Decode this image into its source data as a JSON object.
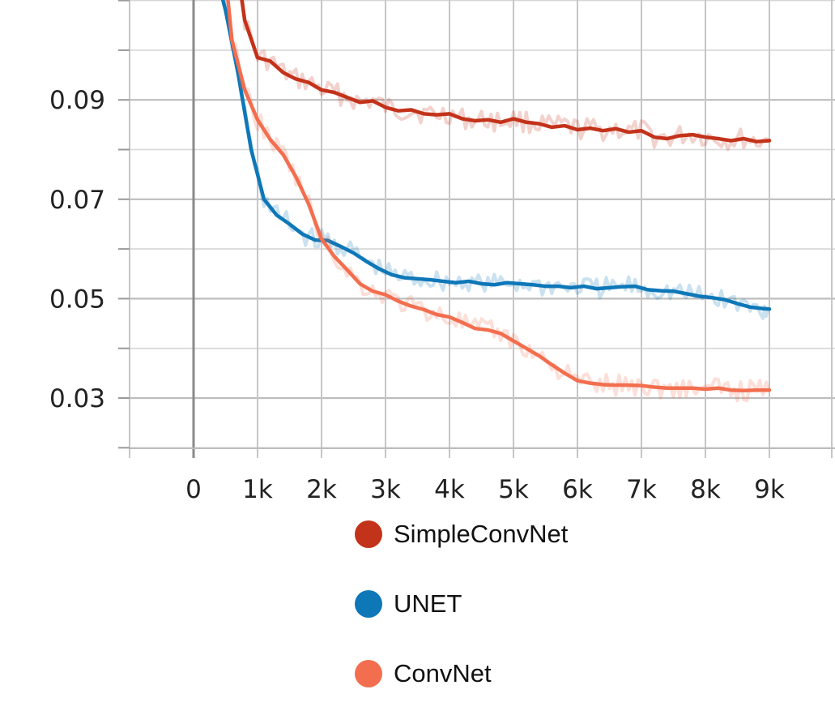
{
  "chart_data": {
    "type": "line",
    "title": "",
    "xlabel": "",
    "ylabel": "",
    "xlim": [
      -1000,
      9950
    ],
    "ylim": [
      0.02,
      0.11
    ],
    "grid": true,
    "legend_position": "bottom-center",
    "x_ticks": [
      0,
      1000,
      2000,
      3000,
      4000,
      5000,
      6000,
      7000,
      8000,
      9000
    ],
    "x_tick_labels": [
      "0",
      "1k",
      "2k",
      "3k",
      "4k",
      "5k",
      "6k",
      "7k",
      "8k",
      "9k"
    ],
    "y_ticks": [
      0.03,
      0.05,
      0.07,
      0.09
    ],
    "y_tick_labels": [
      "0.03",
      "0.05",
      "0.07",
      "0.09"
    ],
    "series": [
      {
        "name": "SimpleConvNet",
        "color": "#c3321a",
        "points": [
          [
            700,
            0.115
          ],
          [
            800,
            0.106
          ],
          [
            1000,
            0.0985
          ],
          [
            1200,
            0.0978
          ],
          [
            1400,
            0.0955
          ],
          [
            1600,
            0.0942
          ],
          [
            1800,
            0.0935
          ],
          [
            2000,
            0.092
          ],
          [
            2200,
            0.0915
          ],
          [
            2400,
            0.0905
          ],
          [
            2600,
            0.0895
          ],
          [
            2800,
            0.0898
          ],
          [
            3000,
            0.0885
          ],
          [
            3200,
            0.0878
          ],
          [
            3400,
            0.088
          ],
          [
            3600,
            0.0872
          ],
          [
            3800,
            0.087
          ],
          [
            4000,
            0.0872
          ],
          [
            4200,
            0.0862
          ],
          [
            4400,
            0.0858
          ],
          [
            4600,
            0.086
          ],
          [
            4800,
            0.0855
          ],
          [
            5000,
            0.0862
          ],
          [
            5200,
            0.0855
          ],
          [
            5400,
            0.0852
          ],
          [
            5600,
            0.0845
          ],
          [
            5800,
            0.0848
          ],
          [
            6000,
            0.084
          ],
          [
            6200,
            0.0843
          ],
          [
            6400,
            0.0838
          ],
          [
            6600,
            0.0842
          ],
          [
            6800,
            0.0835
          ],
          [
            7000,
            0.0838
          ],
          [
            7200,
            0.0825
          ],
          [
            7400,
            0.0822
          ],
          [
            7600,
            0.0828
          ],
          [
            7800,
            0.083
          ],
          [
            8000,
            0.0825
          ],
          [
            8200,
            0.0822
          ],
          [
            8400,
            0.0818
          ],
          [
            8600,
            0.0822
          ],
          [
            8800,
            0.0816
          ],
          [
            9000,
            0.0818
          ]
        ]
      },
      {
        "name": "UNET",
        "color": "#0e77b8",
        "points": [
          [
            360,
            0.115
          ],
          [
            500,
            0.108
          ],
          [
            700,
            0.095
          ],
          [
            900,
            0.08
          ],
          [
            1100,
            0.07
          ],
          [
            1300,
            0.0668
          ],
          [
            1500,
            0.065
          ],
          [
            1700,
            0.063
          ],
          [
            1900,
            0.0618
          ],
          [
            2100,
            0.0617
          ],
          [
            2300,
            0.0605
          ],
          [
            2500,
            0.0592
          ],
          [
            2700,
            0.0575
          ],
          [
            2900,
            0.056
          ],
          [
            3100,
            0.0548
          ],
          [
            3300,
            0.0542
          ],
          [
            3500,
            0.054
          ],
          [
            3700,
            0.0538
          ],
          [
            3900,
            0.0535
          ],
          [
            4100,
            0.0532
          ],
          [
            4300,
            0.0535
          ],
          [
            4500,
            0.053
          ],
          [
            4700,
            0.0528
          ],
          [
            4900,
            0.0532
          ],
          [
            5100,
            0.053
          ],
          [
            5300,
            0.0528
          ],
          [
            5500,
            0.0525
          ],
          [
            5700,
            0.0525
          ],
          [
            5900,
            0.0522
          ],
          [
            6100,
            0.0525
          ],
          [
            6300,
            0.052
          ],
          [
            6500,
            0.0522
          ],
          [
            6700,
            0.0524
          ],
          [
            6900,
            0.0525
          ],
          [
            7100,
            0.0518
          ],
          [
            7300,
            0.0516
          ],
          [
            7500,
            0.0515
          ],
          [
            7700,
            0.051
          ],
          [
            7900,
            0.0505
          ],
          [
            8100,
            0.0502
          ],
          [
            8300,
            0.0498
          ],
          [
            8500,
            0.049
          ],
          [
            8700,
            0.0483
          ],
          [
            8900,
            0.048
          ],
          [
            9000,
            0.0479
          ]
        ]
      },
      {
        "name": "ConvNet",
        "color": "#f26e4f",
        "points": [
          [
            500,
            0.115
          ],
          [
            600,
            0.102
          ],
          [
            800,
            0.092
          ],
          [
            1000,
            0.086
          ],
          [
            1200,
            0.082
          ],
          [
            1400,
            0.079
          ],
          [
            1600,
            0.0745
          ],
          [
            1800,
            0.069
          ],
          [
            2000,
            0.062
          ],
          [
            2200,
            0.0585
          ],
          [
            2400,
            0.0558
          ],
          [
            2600,
            0.053
          ],
          [
            2800,
            0.0515
          ],
          [
            3000,
            0.0508
          ],
          [
            3200,
            0.0495
          ],
          [
            3400,
            0.0485
          ],
          [
            3600,
            0.0478
          ],
          [
            3800,
            0.0468
          ],
          [
            4000,
            0.0463
          ],
          [
            4200,
            0.0452
          ],
          [
            4400,
            0.044
          ],
          [
            4600,
            0.0437
          ],
          [
            4800,
            0.043
          ],
          [
            5000,
            0.0415
          ],
          [
            5200,
            0.04
          ],
          [
            5400,
            0.0385
          ],
          [
            5600,
            0.0367
          ],
          [
            5800,
            0.035
          ],
          [
            6000,
            0.0335
          ],
          [
            6200,
            0.033
          ],
          [
            6400,
            0.0327
          ],
          [
            6600,
            0.0326
          ],
          [
            6800,
            0.0326
          ],
          [
            7000,
            0.0325
          ],
          [
            7200,
            0.0322
          ],
          [
            7400,
            0.032
          ],
          [
            7600,
            0.032
          ],
          [
            7800,
            0.032
          ],
          [
            8000,
            0.0318
          ],
          [
            8200,
            0.032
          ],
          [
            8400,
            0.0316
          ],
          [
            8600,
            0.0315
          ],
          [
            8800,
            0.0316
          ],
          [
            9000,
            0.0316
          ]
        ]
      }
    ]
  }
}
